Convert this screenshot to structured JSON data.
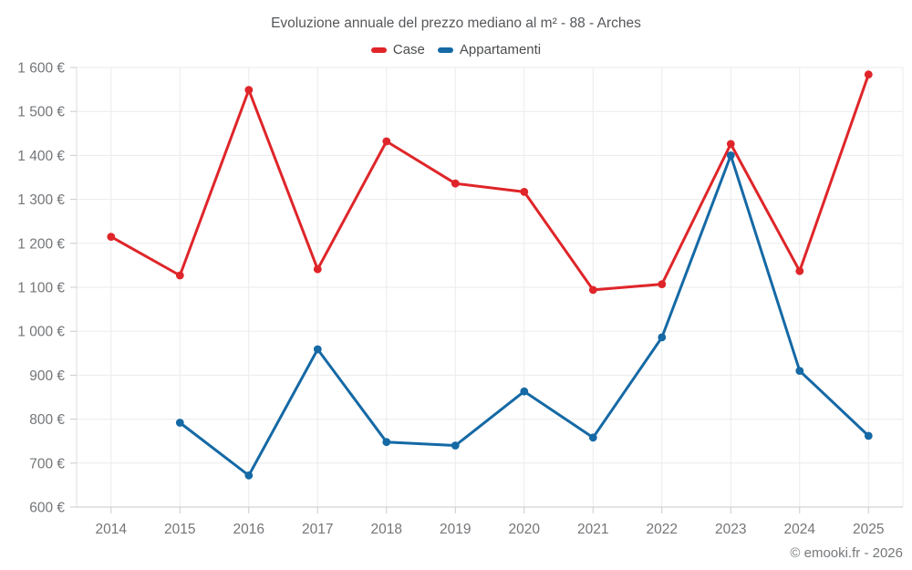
{
  "chart": {
    "title": "Evoluzione annuale del prezzo mediano al m² - 88 - Arches",
    "copyright": "© emooki.fr - 2026"
  },
  "chart_data": {
    "type": "line",
    "title": "Evoluzione annuale del prezzo mediano al m² - 88 - Arches",
    "categories": [
      "2014",
      "2015",
      "2016",
      "2017",
      "2018",
      "2019",
      "2020",
      "2021",
      "2022",
      "2023",
      "2024",
      "2025"
    ],
    "series": [
      {
        "name": "Case",
        "color": "#df2529",
        "values": [
          1215,
          1127,
          1549,
          1141,
          1432,
          1336,
          1317,
          1094,
          1107,
          1426,
          1137,
          1584
        ]
      },
      {
        "name": "Appartamenti",
        "color": "#1569a5",
        "values": [
          null,
          792,
          672,
          959,
          748,
          740,
          863,
          758,
          986,
          1400,
          910,
          762
        ]
      }
    ],
    "xlabel": "",
    "ylabel": "",
    "ylim": [
      600,
      1600
    ],
    "ytick_step": 100,
    "ytick_labels": [
      "600 €",
      "700 €",
      "800 €",
      "900 €",
      "1 000 €",
      "1 100 €",
      "1 200 €",
      "1 300 €",
      "1 400 €",
      "1 500 €",
      "1 600 €"
    ],
    "grid": true,
    "legend_position": "top",
    "annotations": [
      "© emooki.fr - 2026"
    ]
  }
}
